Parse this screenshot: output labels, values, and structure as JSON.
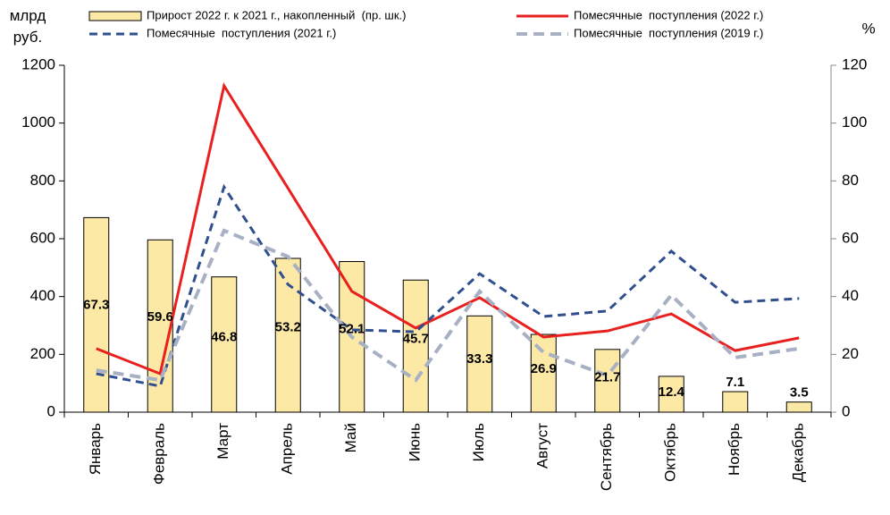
{
  "chart_data": {
    "type": "bar_line",
    "ylabel": "млрд руб.",
    "y2label": "%",
    "categories": [
      "Январь",
      "Февраль",
      "Март",
      "Апрель",
      "Май",
      "Июнь",
      "Июль",
      "Август",
      "Сентябрь",
      "Октябрь",
      "Ноябрь",
      "Декабрь"
    ],
    "series": [
      {
        "name": "Прирост 2022 г. к 2021 г., накопленный  (пр. шк.)",
        "type": "bar",
        "axis": "y2",
        "color": "#fde9a6",
        "values": [
          67.3,
          59.6,
          46.8,
          53.2,
          52.1,
          45.7,
          33.3,
          26.9,
          21.7,
          12.4,
          7.1,
          3.5
        ]
      },
      {
        "name": "Помесячные  поступления (2022 г.)",
        "type": "line",
        "color": "#e8201f",
        "dash": "solid",
        "values": [
          220,
          133,
          1129,
          775,
          418,
          291,
          396,
          260,
          281,
          340,
          213,
          257
        ]
      },
      {
        "name": "Помесячные  поступления (2021 г.)",
        "type": "line",
        "color": "#2f4f8f",
        "dash": "dashed",
        "values": [
          133,
          90,
          779,
          442,
          285,
          278,
          479,
          331,
          350,
          557,
          380,
          393
        ]
      },
      {
        "name": "Помесячные  поступления (2019 г.)",
        "type": "line",
        "color": "#a8b0c4",
        "dash": "dashed",
        "values": [
          145,
          111,
          628,
          538,
          260,
          111,
          418,
          207,
          127,
          405,
          189,
          220
        ]
      }
    ],
    "ylim": [
      0,
      1200
    ],
    "yticks": [
      0,
      200,
      400,
      600,
      800,
      1000,
      1200
    ],
    "y2lim": [
      0,
      120
    ],
    "y2ticks": [
      0,
      20,
      40,
      60,
      80,
      100,
      120
    ]
  }
}
